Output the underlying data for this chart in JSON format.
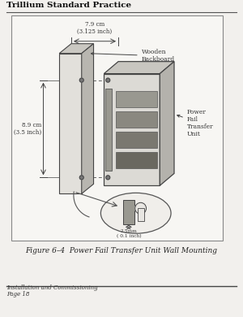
{
  "page_bg": "#f2f0ed",
  "diagram_bg": "#f7f6f3",
  "title": "Trillium Standard Practice",
  "title_fontsize": 7.5,
  "figure_caption": "Figure 6–4  Power Fail Transfer Unit Wall Mounting",
  "caption_fontsize": 6.5,
  "footer_line1": "Installation and Commissioning",
  "footer_line2": "Page 18",
  "footer_fontsize": 5.0,
  "line_color": "#444444",
  "text_color": "#333333",
  "dim_79_text": "7.9 cm\n(3.125 inch)",
  "dim_89_text": "8.9 cm\n(3.5 inch)",
  "dim_25_text": "2.5mm\n( 0.1 inch)",
  "label_wooden": "Wooden\nBackboard",
  "label_power": "Power\nFail\nTransfer\nUnit",
  "board_front": [
    "#e2e0db",
    "#444444"
  ],
  "board_top": [
    "#cac8c2",
    "#444444"
  ],
  "board_side": [
    "#b8b6b0",
    "#444444"
  ],
  "unit_front": [
    "#dcdad5",
    "#444444"
  ],
  "unit_top": [
    "#c8c6c0",
    "#444444"
  ],
  "unit_right": [
    "#b4b2ac",
    "#444444"
  ],
  "slot_colors": [
    "#999890",
    "#8a8880",
    "#7a7870",
    "#6a6860"
  ],
  "screw_fill": "#999890",
  "ellipse_bg": "#f0eeea"
}
